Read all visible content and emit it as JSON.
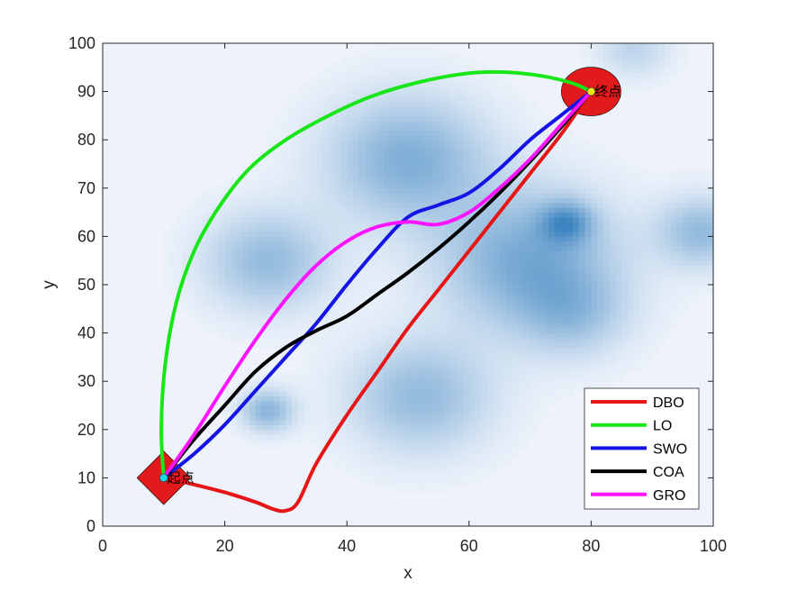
{
  "chart_data": {
    "type": "line",
    "title": "",
    "xlabel": "x",
    "ylabel": "y",
    "xlim": [
      0,
      100
    ],
    "ylim": [
      0,
      100
    ],
    "xticks": [
      "0",
      "20",
      "40",
      "60",
      "80",
      "100"
    ],
    "yticks": [
      "0",
      "10",
      "20",
      "30",
      "40",
      "50",
      "60",
      "70",
      "80",
      "90",
      "100"
    ],
    "grid": false,
    "legend_position": "bottom-right",
    "start": {
      "x": 10,
      "y": 10,
      "label": "起点"
    },
    "goal": {
      "x": 80,
      "y": 90,
      "label": "终点"
    },
    "background": {
      "type": "terrain-heatmap",
      "colormap": "blues",
      "peaks": [
        {
          "x": 50,
          "y": 76,
          "r": 9,
          "h": 0.55
        },
        {
          "x": 27,
          "y": 55,
          "r": 7,
          "h": 0.45
        },
        {
          "x": 70,
          "y": 55,
          "r": 10,
          "h": 0.6
        },
        {
          "x": 76,
          "y": 63,
          "r": 3,
          "h": 0.55
        },
        {
          "x": 52,
          "y": 27,
          "r": 8,
          "h": 0.45
        },
        {
          "x": 27,
          "y": 24,
          "r": 3,
          "h": 0.5
        },
        {
          "x": 98,
          "y": 61,
          "r": 5,
          "h": 0.45
        },
        {
          "x": 87,
          "y": 99,
          "r": 4,
          "h": 0.25
        },
        {
          "x": 77,
          "y": 44,
          "r": 6,
          "h": 0.3
        }
      ]
    },
    "series": [
      {
        "name": "DBO",
        "color": "#e61616",
        "x": [
          10,
          15,
          20,
          25,
          28,
          30,
          32,
          35,
          40,
          45,
          50,
          55,
          60,
          65,
          70,
          75,
          80
        ],
        "y": [
          10,
          8.6,
          7,
          5,
          3.5,
          3.2,
          5,
          13,
          23,
          32,
          41,
          49,
          57,
          65,
          73,
          81,
          90
        ]
      },
      {
        "name": "LO",
        "color": "#19e619",
        "x": [
          10,
          9.6,
          10.2,
          12,
          15,
          19,
          24,
          30,
          37,
          44,
          52,
          60,
          66,
          72,
          77,
          80
        ],
        "y": [
          10,
          20,
          33,
          46,
          57,
          66,
          74,
          80,
          85,
          89,
          92,
          93.8,
          94,
          93.2,
          91.7,
          90
        ]
      },
      {
        "name": "SWO",
        "color": "#1414e6",
        "x": [
          10,
          15,
          20,
          25,
          30,
          35,
          40,
          45,
          50,
          55,
          60,
          65,
          70,
          75,
          80
        ],
        "y": [
          10,
          15,
          21,
          28,
          35,
          42,
          50,
          57.5,
          64,
          66.5,
          69,
          74,
          80,
          85,
          90
        ]
      },
      {
        "name": "COA",
        "color": "#000000",
        "x": [
          10,
          15,
          20,
          25,
          30,
          35,
          40,
          45,
          50,
          55,
          60,
          65,
          70,
          75,
          80
        ],
        "y": [
          10,
          18,
          25,
          32,
          37,
          40.5,
          43.5,
          48,
          52.5,
          57.5,
          63,
          69,
          75.5,
          82.5,
          90
        ]
      },
      {
        "name": "GRO",
        "color": "#ff14ff",
        "x": [
          10,
          15,
          20,
          25,
          30,
          35,
          40,
          45,
          50,
          55,
          60,
          65,
          70,
          75,
          80
        ],
        "y": [
          10,
          19,
          29,
          38.5,
          47,
          54,
          59,
          62,
          63,
          62.5,
          65,
          70,
          76,
          83,
          90
        ]
      }
    ]
  }
}
